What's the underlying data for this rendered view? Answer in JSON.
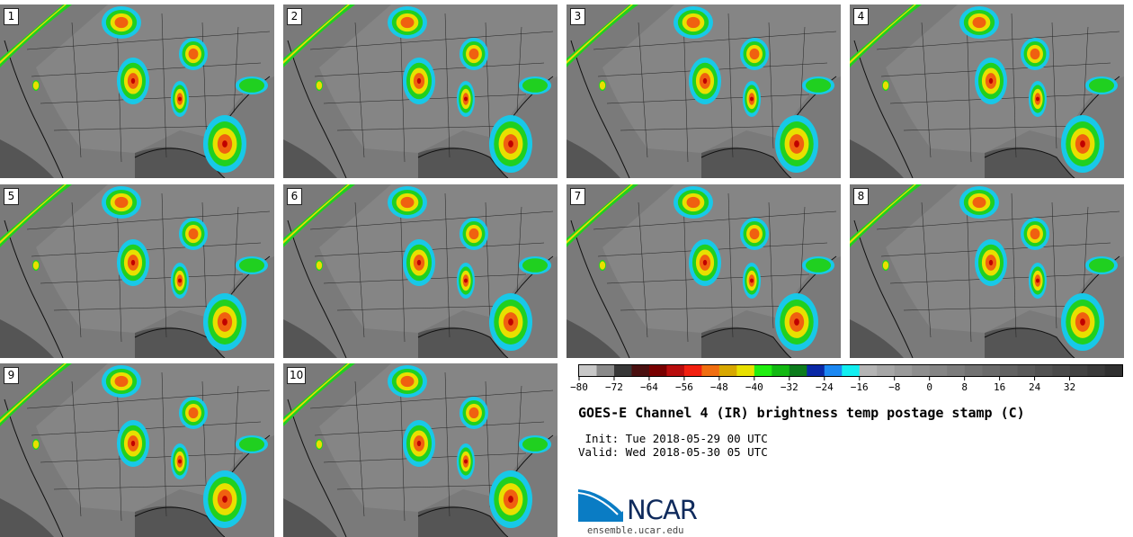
{
  "panels": [
    {
      "label": "1"
    },
    {
      "label": "2"
    },
    {
      "label": "3"
    },
    {
      "label": "4"
    },
    {
      "label": "5"
    },
    {
      "label": "6"
    },
    {
      "label": "7"
    },
    {
      "label": "8"
    },
    {
      "label": "9"
    },
    {
      "label": "10"
    }
  ],
  "colorbar": {
    "colors": [
      "#c8c8c8",
      "#8a8a8a",
      "#383838",
      "#4a1010",
      "#780000",
      "#b80d0d",
      "#f22010",
      "#f06e10",
      "#d8a800",
      "#e8e000",
      "#20ee10",
      "#12b812",
      "#0c7c1c",
      "#0a28a6",
      "#1c88f2",
      "#12eef0",
      "#b4b4b4",
      "#a6a6a6",
      "#9a9a9a",
      "#8e8e8e",
      "#858585",
      "#7c7c7c",
      "#727272",
      "#6a6a6a",
      "#626262",
      "#5a5a5a",
      "#525252",
      "#4a4a4a",
      "#424242",
      "#3a3a3a",
      "#303030"
    ],
    "tick_labels": [
      "−80",
      "−72",
      "−64",
      "−56",
      "−48",
      "−40",
      "−32",
      "−24",
      "−16",
      "−8",
      "0",
      "8",
      "16",
      "24",
      "32"
    ]
  },
  "title": "GOES-E Channel 4 (IR) brightness temp postage stamp (C)",
  "init_line": " Init: Tue 2018-05-29 00 UTC",
  "valid_line": "Valid: Wed 2018-05-30 05 UTC",
  "logo_text": "NCAR",
  "url": "ensemble.ucar.edu"
}
